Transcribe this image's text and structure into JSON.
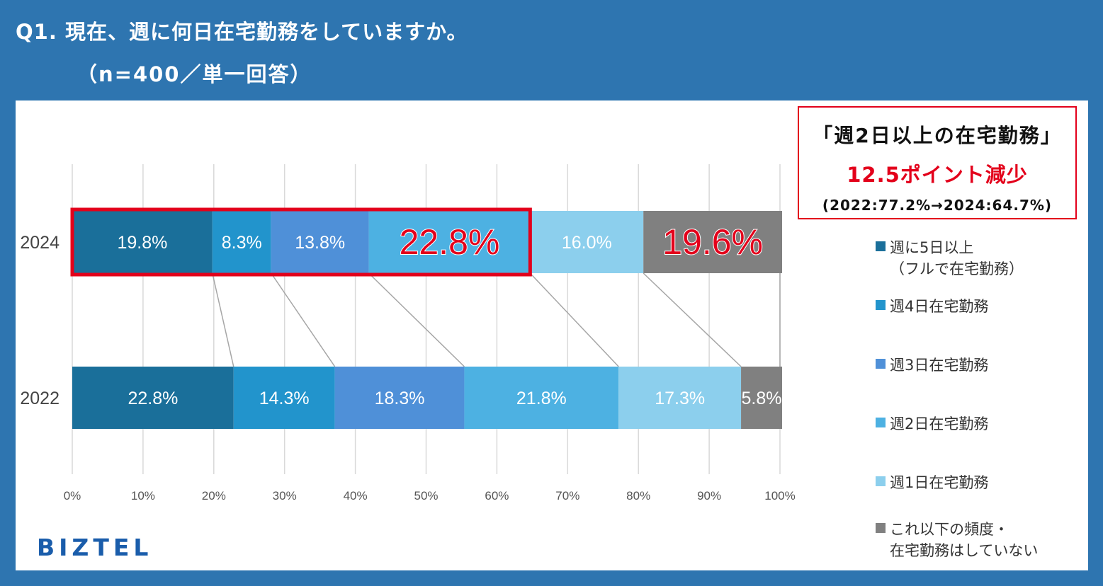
{
  "header": {
    "title": "Q1. 現在、週に何日在宅勤務をしていますか。",
    "subtitle": "（n=400／単一回答）"
  },
  "callout": {
    "line1": "「週2日以上の在宅勤務」",
    "line2": "12.5ポイント減少",
    "line3": "(2022:77.2%→2024:64.7%)"
  },
  "logo": "BIZTEL",
  "chart_data": {
    "type": "bar",
    "orientation": "horizontal",
    "stacked": true,
    "percent": true,
    "categories": [
      "2024",
      "2022"
    ],
    "series": [
      {
        "name": "週に5日以上（フルで在宅勤務）",
        "values": [
          19.8,
          22.8
        ],
        "color": "#1a6f9a"
      },
      {
        "name": "週4日在宅勤務",
        "values": [
          8.3,
          14.3
        ],
        "color": "#2294cc"
      },
      {
        "name": "週3日在宅勤務",
        "values": [
          13.8,
          18.3
        ],
        "color": "#4f90d8"
      },
      {
        "name": "週2日在宅勤務",
        "values": [
          22.8,
          21.8
        ],
        "color": "#4db1e2"
      },
      {
        "name": "週1日在宅勤務",
        "values": [
          16.0,
          17.3
        ],
        "color": "#8ccfed"
      },
      {
        "name": "これ以下の頻度・在宅勤務はしていない",
        "values": [
          19.6,
          5.8
        ],
        "color": "#808080"
      }
    ],
    "data_labels": [
      [
        "19.8%",
        "8.3%",
        "13.8%",
        "22.8%",
        "16.0%",
        "19.6%"
      ],
      [
        "22.8%",
        "14.3%",
        "18.3%",
        "21.8%",
        "17.3%",
        "5.8%"
      ]
    ],
    "highlighted_labels": [
      [
        0,
        3
      ],
      [
        0,
        5
      ]
    ],
    "highlight_color": "#e3001b",
    "xlim": [
      0,
      100
    ],
    "x_ticks": [
      "0%",
      "10%",
      "20%",
      "30%",
      "40%",
      "50%",
      "60%",
      "70%",
      "80%",
      "90%",
      "100%"
    ],
    "grid": true,
    "legend_position": "right",
    "highlight_box": {
      "category": "2024",
      "from": 0,
      "to": 64.7,
      "color": "#e3001b"
    }
  },
  "legend": {
    "items": [
      {
        "line1": "週に5日以上",
        "line2": "（フルで在宅勤務）"
      },
      {
        "line1": "週4日在宅勤務",
        "line2": ""
      },
      {
        "line1": "週3日在宅勤務",
        "line2": ""
      },
      {
        "line1": "週2日在宅勤務",
        "line2": ""
      },
      {
        "line1": "週1日在宅勤務",
        "line2": ""
      },
      {
        "line1": "これ以下の頻度・",
        "line2": "在宅勤務はしていない"
      }
    ]
  }
}
